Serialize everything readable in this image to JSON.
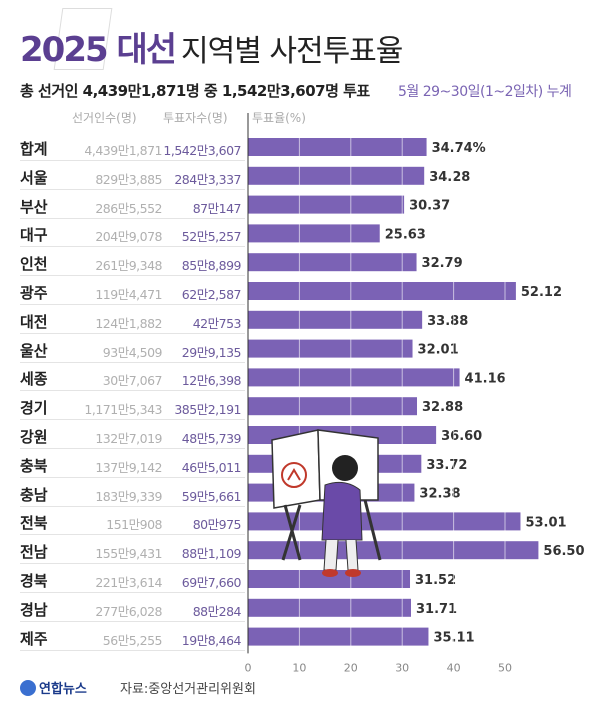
{
  "title": {
    "highlight": "2025 대선",
    "rest": "지역별 사전투표율"
  },
  "subtitle": "총 선거인 4,439만1,871명 중 1,542만3,607명 투표",
  "period": "5월 29~30일(1~2일차) 누계",
  "headers": {
    "electors": "선거인수(명)",
    "voters": "투표자수(명)",
    "rate": "투표율(%)"
  },
  "footer": {
    "logo": "연합뉴스",
    "source": "자료:중앙선거관리위원회"
  },
  "colors": {
    "bar": "#7b62b5",
    "accent": "#5b3f91"
  },
  "chart_data": {
    "type": "bar",
    "orientation": "horizontal",
    "xlim": [
      0,
      55
    ],
    "xticks": [
      0,
      10,
      20,
      30,
      40,
      50
    ],
    "categories": [
      "합계",
      "서울",
      "부산",
      "대구",
      "인천",
      "광주",
      "대전",
      "울산",
      "세종",
      "경기",
      "강원",
      "충북",
      "충남",
      "전북",
      "전남",
      "경북",
      "경남",
      "제주"
    ],
    "values": [
      34.74,
      34.28,
      30.37,
      25.63,
      32.79,
      52.12,
      33.88,
      32.01,
      41.16,
      32.88,
      36.6,
      33.72,
      32.38,
      53.01,
      56.5,
      31.52,
      31.71,
      35.11
    ],
    "value_labels": [
      "34.74%",
      "34.28",
      "30.37",
      "25.63",
      "32.79",
      "52.12",
      "33.88",
      "32.01",
      "41.16",
      "32.88",
      "36.60",
      "33.72",
      "32.38",
      "53.01",
      "56.50",
      "31.52",
      "31.71",
      "35.11"
    ],
    "electors": [
      "4,439만1,871",
      "829만3,885",
      "286만5,552",
      "204만9,078",
      "261만9,348",
      "119만4,471",
      "124만1,882",
      "93만4,509",
      "30만7,067",
      "1,171만5,343",
      "132만7,019",
      "137만9,142",
      "183만9,339",
      "151만908",
      "155만9,431",
      "221만3,614",
      "277만6,028",
      "56만5,255"
    ],
    "voters": [
      "1,542만3,607",
      "284만3,337",
      "87만147",
      "52만5,257",
      "85만8,899",
      "62만2,587",
      "42만753",
      "29만9,135",
      "12만6,398",
      "385만2,191",
      "48만5,739",
      "46만5,011",
      "59만5,661",
      "80만975",
      "88만1,109",
      "69만7,660",
      "88만284",
      "19만8,464"
    ]
  }
}
